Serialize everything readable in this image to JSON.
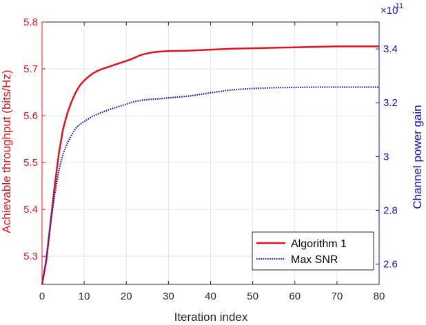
{
  "chart_data": {
    "type": "line",
    "xlabel": "Iteration index",
    "ylabel_left": "Achievable throughput (bits/Hz)",
    "ylabel_right": "Channel power gain",
    "right_exponent_base": "×10",
    "right_exponent_power": "-11",
    "xlim": [
      0,
      80
    ],
    "ylim_left": [
      5.24,
      5.8
    ],
    "ylim_right": [
      2.525,
      3.5
    ],
    "x_ticks": [
      0,
      10,
      20,
      30,
      40,
      50,
      60,
      70,
      80
    ],
    "x_tick_labels": [
      "0",
      "10",
      "20",
      "30",
      "40",
      "50",
      "60",
      "70",
      "80"
    ],
    "y_left_ticks": [
      5.3,
      5.4,
      5.5,
      5.6,
      5.7,
      5.8
    ],
    "y_left_tick_labels": [
      "5.3",
      "5.4",
      "5.5",
      "5.6",
      "5.7",
      "5.8"
    ],
    "y_right_ticks": [
      2.6,
      2.8,
      3.0,
      3.2,
      3.4
    ],
    "y_right_tick_labels": [
      "2.6",
      "2.8",
      "3",
      "3.2",
      "3.4"
    ],
    "grid": true,
    "legend_position": "bottom-right",
    "colors": {
      "left_axis": "#e8101a",
      "right_axis": "#1010d0",
      "grid": "#e6e6e6"
    },
    "series": [
      {
        "name": "Algorithm 1",
        "axis": "left",
        "style": "solid",
        "color": "#e8101a",
        "x": [
          0,
          1,
          2,
          3,
          4,
          5,
          6,
          7,
          8,
          9,
          10,
          11,
          12,
          13,
          14,
          15,
          16,
          17,
          18,
          19,
          20,
          21,
          22,
          23,
          24,
          25,
          26,
          27,
          28,
          29,
          30,
          35,
          40,
          45,
          50,
          55,
          60,
          65,
          70,
          75,
          80
        ],
        "y": [
          5.24,
          5.29,
          5.37,
          5.45,
          5.52,
          5.572,
          5.605,
          5.63,
          5.65,
          5.665,
          5.675,
          5.683,
          5.69,
          5.695,
          5.699,
          5.702,
          5.705,
          5.708,
          5.711,
          5.714,
          5.717,
          5.72,
          5.724,
          5.728,
          5.731,
          5.733,
          5.735,
          5.736,
          5.737,
          5.7375,
          5.738,
          5.739,
          5.741,
          5.743,
          5.744,
          5.745,
          5.746,
          5.747,
          5.748,
          5.748,
          5.748
        ]
      },
      {
        "name": "Max SNR",
        "axis": "right",
        "style": "dotted",
        "color": "#1010d0",
        "x": [
          0,
          1,
          2,
          3,
          4,
          5,
          6,
          7,
          8,
          9,
          10,
          12,
          14,
          16,
          18,
          20,
          22,
          24,
          26,
          28,
          30,
          35,
          40,
          45,
          50,
          55,
          60,
          65,
          70,
          75,
          80
        ],
        "y": [
          2.525,
          2.62,
          2.75,
          2.86,
          2.95,
          3.01,
          3.05,
          3.08,
          3.105,
          3.12,
          3.13,
          3.15,
          3.163,
          3.175,
          3.185,
          3.195,
          3.205,
          3.21,
          3.213,
          3.215,
          3.218,
          3.225,
          3.237,
          3.248,
          3.253,
          3.256,
          3.257,
          3.258,
          3.258,
          3.258,
          3.258
        ]
      }
    ]
  }
}
